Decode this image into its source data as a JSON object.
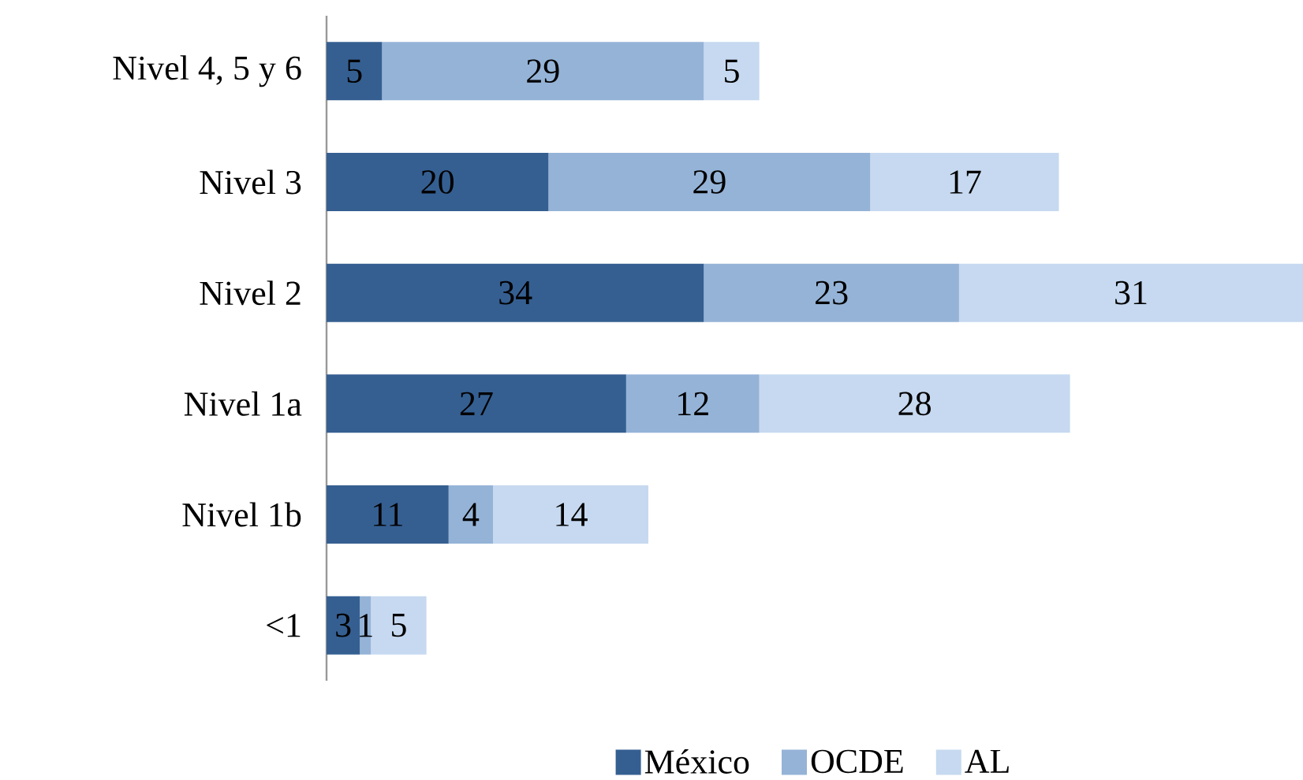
{
  "chart_data": {
    "type": "bar",
    "orientation": "horizontal",
    "stacked": true,
    "data_labels": true,
    "tick_labels": "y",
    "legend": "bottom",
    "categories": [
      "Nivel  4, 5 y 6",
      "Nivel 3",
      "Nivel 2",
      "Nivel 1a",
      "Nivel 1b",
      "<1"
    ],
    "xlim": [
      0,
      88
    ],
    "series": [
      {
        "name": "México",
        "color": "#355f91",
        "values": [
          5,
          20,
          34,
          27,
          11,
          3
        ]
      },
      {
        "name": "OCDE",
        "color": "#95b3d7",
        "values": [
          29,
          29,
          23,
          12,
          4,
          1
        ]
      },
      {
        "name": "AL",
        "color": "#c6d9f0",
        "values": [
          5,
          17,
          31,
          28,
          14,
          5
        ]
      }
    ]
  }
}
